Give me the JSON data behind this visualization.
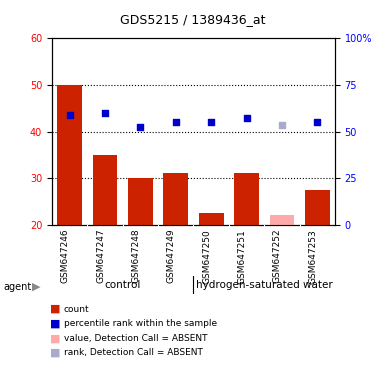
{
  "title": "GDS5215 / 1389436_at",
  "samples": [
    "GSM647246",
    "GSM647247",
    "GSM647248",
    "GSM647249",
    "GSM647250",
    "GSM647251",
    "GSM647252",
    "GSM647253"
  ],
  "bar_values": [
    50.0,
    35.0,
    30.0,
    31.0,
    22.5,
    31.0,
    null,
    27.5
  ],
  "bar_absent_values": [
    null,
    null,
    null,
    null,
    null,
    null,
    22.0,
    null
  ],
  "rank_values": [
    43.5,
    44.0,
    41.0,
    42.0,
    42.0,
    43.0,
    null,
    42.0
  ],
  "rank_absent_values": [
    null,
    null,
    null,
    null,
    null,
    null,
    41.5,
    null
  ],
  "ylim_left": [
    20,
    60
  ],
  "ylim_right": [
    0,
    100
  ],
  "yticks_left": [
    20,
    30,
    40,
    50,
    60
  ],
  "yticks_right": [
    0,
    25,
    50,
    75,
    100
  ],
  "yticklabels_right": [
    "0",
    "25",
    "50",
    "75",
    "100%"
  ],
  "bar_color": "#cc2200",
  "bar_absent_color": "#ffaaaa",
  "rank_color": "#0000cc",
  "rank_absent_color": "#aaaacc",
  "group1_label": "control",
  "group2_label": "hydrogen-saturated water",
  "group1_count": 4,
  "group2_count": 4,
  "group_bg_color": "#90ee90",
  "agent_label": "agent",
  "legend_items": [
    {
      "color": "#cc2200",
      "label": "count"
    },
    {
      "color": "#0000cc",
      "label": "percentile rank within the sample"
    },
    {
      "color": "#ffaaaa",
      "label": "value, Detection Call = ABSENT"
    },
    {
      "color": "#aaaacc",
      "label": "rank, Detection Call = ABSENT"
    }
  ],
  "background_color": "#ffffff",
  "plot_bg_color": "#ffffff",
  "xticklabel_area_color": "#cccccc"
}
